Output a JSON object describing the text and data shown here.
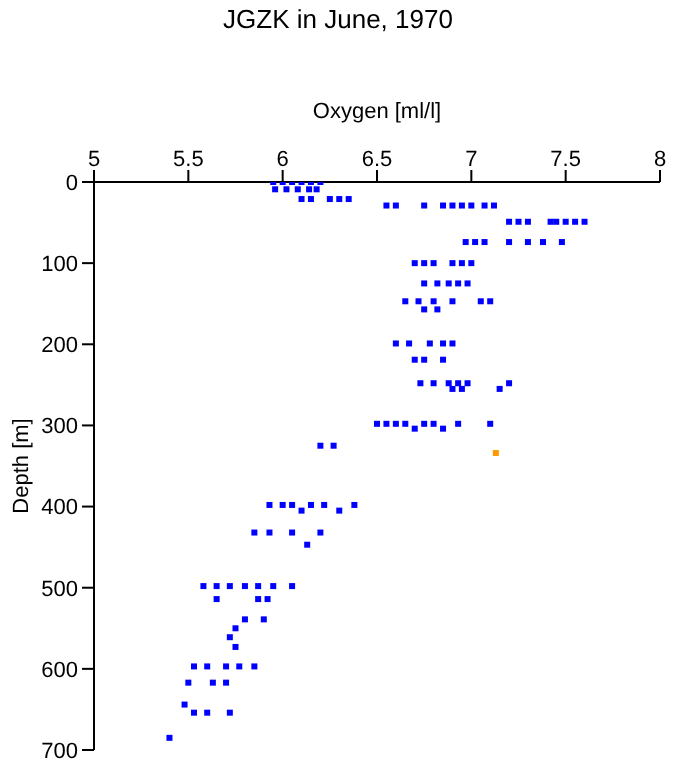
{
  "chart_data": {
    "type": "scatter",
    "title": "JGZK in June, 1970",
    "xlabel": "Oxygen [ml/l]",
    "ylabel": "Depth [m]",
    "xlim": [
      5,
      8
    ],
    "xticks": [
      5,
      5.5,
      6,
      6.5,
      7,
      7.5,
      8
    ],
    "ylim": [
      700,
      0
    ],
    "yticks": [
      0,
      100,
      200,
      300,
      400,
      500,
      600,
      700
    ],
    "grid": false,
    "marker": "square",
    "series": [
      {
        "color": "#0000ff",
        "x": [
          5.95,
          6.0,
          6.05,
          6.1,
          6.15,
          6.2,
          5.96,
          6.02,
          6.08,
          6.14,
          6.18,
          6.1,
          6.15,
          6.25,
          6.3,
          6.35,
          6.55,
          6.6,
          6.75,
          6.85,
          6.9,
          6.95,
          7.0,
          7.07,
          7.12,
          7.2,
          7.25,
          7.3,
          7.42,
          7.45,
          7.5,
          7.55,
          7.6,
          6.97,
          7.02,
          7.07,
          7.2,
          7.3,
          7.38,
          7.48,
          6.7,
          6.75,
          6.8,
          6.9,
          6.95,
          7.0,
          6.75,
          6.82,
          6.88,
          6.93,
          6.98,
          6.65,
          6.72,
          6.8,
          6.9,
          7.05,
          7.1,
          6.75,
          6.82,
          6.6,
          6.67,
          6.78,
          6.85,
          6.9,
          6.7,
          6.75,
          6.85,
          6.73,
          6.8,
          6.88,
          6.93,
          6.98,
          7.2,
          6.9,
          6.95,
          7.15,
          6.5,
          6.55,
          6.6,
          6.65,
          6.75,
          6.8,
          6.93,
          7.1,
          6.7,
          6.85,
          6.2,
          6.27,
          5.93,
          6.0,
          6.05,
          6.15,
          6.22,
          6.38,
          6.1,
          6.3,
          5.85,
          5.93,
          6.05,
          6.2,
          6.13,
          5.58,
          5.65,
          5.72,
          5.8,
          5.87,
          5.95,
          6.05,
          5.65,
          5.87,
          5.92,
          5.8,
          5.9,
          5.75,
          5.72,
          5.75,
          5.53,
          5.6,
          5.7,
          5.77,
          5.85,
          5.5,
          5.63,
          5.7,
          5.48,
          5.53,
          5.6,
          5.72,
          5.4
        ],
        "values": [
          0,
          0,
          0,
          0,
          0,
          0,
          9,
          9,
          9,
          9,
          9,
          21,
          21,
          21,
          21,
          21,
          29,
          29,
          29,
          29,
          29,
          29,
          29,
          29,
          29,
          49,
          49,
          49,
          49,
          49,
          49,
          49,
          49,
          74,
          74,
          74,
          74,
          74,
          74,
          74,
          100,
          100,
          100,
          100,
          100,
          100,
          125,
          125,
          125,
          125,
          125,
          147,
          147,
          147,
          147,
          147,
          147,
          157,
          157,
          199,
          199,
          199,
          199,
          199,
          219,
          219,
          219,
          248,
          248,
          248,
          248,
          248,
          248,
          255,
          255,
          255,
          298,
          298,
          298,
          298,
          298,
          298,
          298,
          298,
          304,
          304,
          325,
          325,
          398,
          398,
          398,
          398,
          398,
          398,
          405,
          405,
          432,
          432,
          432,
          432,
          447,
          498,
          498,
          498,
          498,
          498,
          498,
          498,
          514,
          514,
          514,
          539,
          539,
          550,
          561,
          573,
          597,
          597,
          597,
          597,
          597,
          617,
          617,
          617,
          644,
          654,
          654,
          654,
          685
        ]
      },
      {
        "color": "#ff9900",
        "x": [
          7.13
        ],
        "values": [
          334
        ]
      }
    ]
  }
}
